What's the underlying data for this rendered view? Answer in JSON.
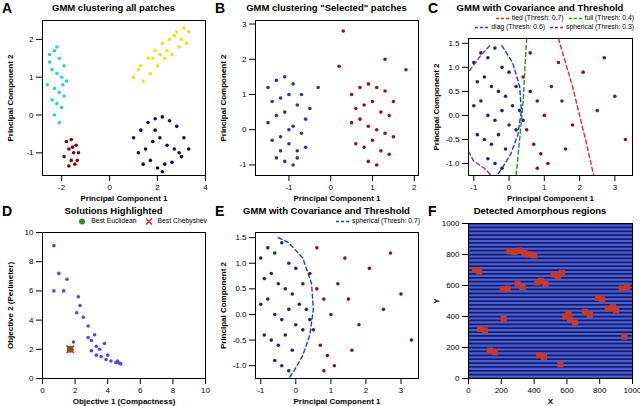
{
  "chart_data": [
    {
      "panel": "A",
      "type": "scatter",
      "title": "GMM clustering all patches",
      "x_label": "Principal Component 1",
      "y_label": "Principal Component 2",
      "xlim": [
        -2.8,
        4.0
      ],
      "ylim": [
        -1.6,
        2.5
      ],
      "xticks": [
        -2,
        0,
        2,
        4
      ],
      "yticks": [
        -1,
        0,
        1,
        2
      ],
      "series": [
        {
          "color": "#2ecfd4",
          "marker": "circle",
          "x": [
            -2.5,
            -2.3,
            -2.1,
            -1.9,
            -2.4,
            -2.2,
            -2.0,
            -1.8,
            -2.6,
            -2.3,
            -2.1,
            -1.9,
            -2.4,
            -2.2,
            -2.0,
            -2.5,
            -2.3,
            -2.1,
            -2.2,
            -1.95
          ],
          "y": [
            1.6,
            1.7,
            1.5,
            1.3,
            1.2,
            1.1,
            1.0,
            0.9,
            0.8,
            0.7,
            0.6,
            0.5,
            0.4,
            0.3,
            0.2,
            1.4,
            0.0,
            -0.2,
            1.8,
            0.8
          ]
        },
        {
          "color": "#7a0a0a",
          "marker": "circle",
          "x": [
            -1.8,
            -1.6,
            -1.4,
            -1.7,
            -1.5,
            -1.3,
            -1.9,
            -1.6,
            -1.45,
            -1.7,
            -1.55,
            -1.35
          ],
          "y": [
            -0.7,
            -0.65,
            -0.8,
            -0.9,
            -1.0,
            -1.0,
            -1.1,
            -1.2,
            -1.3,
            -1.35,
            -0.85,
            -1.2
          ]
        },
        {
          "color": "#0b0b5c",
          "marker": "circle",
          "x": [
            1.0,
            1.3,
            1.6,
            1.9,
            2.2,
            2.5,
            2.8,
            3.1,
            3.3,
            1.2,
            1.5,
            1.8,
            2.1,
            2.4,
            2.7,
            3.0,
            1.4,
            1.7,
            2.0,
            2.3,
            2.6,
            2.9,
            2.2,
            1.9
          ],
          "y": [
            -0.6,
            -0.4,
            -0.2,
            -0.1,
            -0.05,
            -0.15,
            -0.3,
            -0.6,
            -0.9,
            -1.0,
            -0.9,
            -0.7,
            -0.6,
            -0.8,
            -0.9,
            -1.1,
            -1.3,
            -1.2,
            -1.4,
            -1.3,
            -1.25,
            -1.0,
            -1.5,
            -0.4
          ]
        },
        {
          "color": "#f2df1c",
          "marker": "circle",
          "x": [
            1.0,
            1.3,
            1.6,
            1.9,
            2.2,
            2.5,
            2.8,
            3.1,
            3.3,
            1.4,
            1.7,
            2.0,
            2.3,
            2.6,
            2.9,
            3.2,
            1.2,
            1.8,
            2.4,
            3.0,
            2.1,
            2.7
          ],
          "y": [
            1.0,
            1.3,
            1.5,
            1.7,
            1.9,
            2.0,
            2.2,
            2.3,
            2.2,
            0.9,
            1.1,
            1.3,
            1.5,
            1.6,
            1.8,
            1.9,
            1.2,
            1.5,
            1.7,
            2.0,
            1.6,
            2.1
          ]
        }
      ]
    },
    {
      "panel": "B",
      "type": "scatter",
      "title": "GMM clustering \"Selected\" patches",
      "x_label": "Principal Component 1",
      "y_label": "Principal Component 2",
      "xlim": [
        -1.8,
        2.1
      ],
      "ylim": [
        -1.3,
        3.1
      ],
      "xticks": [
        -1,
        0,
        1,
        2
      ],
      "yticks": [
        -1,
        0,
        1,
        2,
        3
      ],
      "series": [
        {
          "color": "#2b3a8f",
          "marker": "circle",
          "x": [
            -1.5,
            -1.3,
            -1.1,
            -0.9,
            -0.7,
            -0.5,
            -1.4,
            -1.2,
            -1.0,
            -0.8,
            -0.6,
            -1.5,
            -1.3,
            -1.1,
            -0.9,
            -0.7,
            -1.4,
            -1.2,
            -1.0,
            -0.8,
            -0.6,
            -1.3,
            -1.1,
            -0.9,
            -1.0,
            -0.8,
            -1.2,
            -0.3
          ],
          "y": [
            1.2,
            1.4,
            1.5,
            1.3,
            1.0,
            0.6,
            0.8,
            0.9,
            1.0,
            0.7,
            0.3,
            0.2,
            0.4,
            0.5,
            0.1,
            -0.1,
            -0.3,
            -0.2,
            -0.4,
            -0.6,
            -0.5,
            -0.8,
            -0.9,
            -1.0,
            0.0,
            -0.8,
            -0.6,
            1.2
          ]
        },
        {
          "color": "#8b1a1a",
          "marker": "circle",
          "x": [
            0.5,
            0.7,
            0.9,
            1.1,
            1.3,
            1.5,
            0.6,
            0.8,
            1.0,
            1.2,
            1.4,
            0.5,
            0.7,
            0.9,
            1.1,
            1.3,
            1.5,
            0.6,
            0.8,
            1.0,
            1.2,
            1.4,
            0.9,
            1.1,
            1.8,
            1.3,
            0.3,
            0.2
          ],
          "y": [
            1.0,
            1.2,
            1.3,
            1.2,
            1.1,
            0.8,
            0.6,
            0.7,
            0.8,
            0.5,
            0.4,
            0.2,
            0.3,
            0.1,
            0.0,
            -0.1,
            -0.2,
            -0.4,
            -0.5,
            -0.3,
            -0.6,
            -0.7,
            -0.9,
            -1.0,
            1.7,
            2.0,
            2.8,
            1.8
          ]
        }
      ]
    },
    {
      "panel": "C",
      "type": "scatter",
      "title": "GMM with Covariance and Threshold",
      "x_label": "Principal Component 1",
      "y_label": "Principal Component 2",
      "xlim": [
        -1.15,
        3.5
      ],
      "ylim": [
        -1.25,
        1.6
      ],
      "xticks": [
        -1,
        0,
        1,
        2,
        3
      ],
      "yticks": [
        {
          "value": -1,
          "label": "-1.0"
        },
        {
          "value": -0.5,
          "label": "-0.5"
        },
        {
          "value": 0,
          "label": "0.0"
        },
        0.5,
        {
          "value": 1,
          "label": "1.0"
        },
        1.5
      ],
      "legend": "upper right",
      "series": [
        {
          "color": "#1f2a6e",
          "marker": "circle",
          "x": [
            -1.0,
            -0.8,
            -0.6,
            -0.4,
            -0.2,
            0.0,
            0.2,
            -0.9,
            -0.7,
            -0.5,
            -0.3,
            -0.1,
            0.1,
            0.3,
            -1.0,
            -0.8,
            -0.6,
            -0.4,
            -0.2,
            0.0,
            0.2,
            0.4,
            -0.9,
            -0.7,
            -0.5,
            -0.3,
            -0.1,
            -0.6,
            -0.4,
            -0.2
          ],
          "y": [
            1.1,
            1.3,
            1.2,
            1.4,
            1.0,
            0.9,
            0.6,
            0.7,
            0.8,
            0.6,
            0.5,
            0.4,
            0.2,
            0.1,
            0.2,
            0.3,
            0.0,
            -0.1,
            0.1,
            -0.2,
            -0.3,
            -0.1,
            -0.4,
            -0.5,
            -0.6,
            -0.4,
            -0.7,
            -0.9,
            -1.0,
            -1.1
          ]
        },
        {
          "color": "#7a1a1a",
          "marker": "circle",
          "x": [
            0.4,
            0.6,
            0.8,
            1.0,
            0.5,
            0.7,
            0.9,
            1.2,
            1.5,
            1.8,
            2.1,
            2.5,
            3.0,
            3.3,
            0.6,
            1.1,
            1.4,
            2.7,
            0.8,
            1.6
          ],
          "y": [
            0.8,
            0.5,
            0.3,
            0.0,
            -0.3,
            -0.6,
            -0.8,
            0.6,
            0.3,
            -0.2,
            0.9,
            0.1,
            0.4,
            -0.5,
            1.3,
            -1.0,
            1.1,
            1.2,
            -1.1,
            -0.7
          ]
        },
        {
          "name": "tied (Thresh: 0.7)",
          "type": "line",
          "line_style": "dashed",
          "color": "#e8282b",
          "x": [
            1.4,
            1.6,
            1.8,
            2.0,
            2.2,
            2.4
          ],
          "y": [
            1.6,
            1.1,
            0.6,
            0.0,
            -0.6,
            -1.25
          ]
        },
        {
          "name": "full (Thresh: 0.4)",
          "type": "line",
          "line_style": "dashed",
          "color": "#1a9a1a",
          "x": [
            0.5,
            0.45,
            0.4,
            0.3,
            0.2
          ],
          "y": [
            1.6,
            1.0,
            0.3,
            -0.5,
            -1.25
          ]
        },
        {
          "name": "diag (Thresh: 0.6)",
          "type": "line",
          "line_style": "dashed",
          "color": "#1f3ee0",
          "x": [
            -0.2,
            0.1,
            0.3,
            0.35,
            0.25,
            0.05,
            -0.2,
            -0.35
          ],
          "y": [
            1.45,
            1.1,
            0.6,
            0.1,
            -0.4,
            -0.8,
            -1.1,
            -1.25
          ]
        },
        {
          "name": "spherical (Thresh: 0.3)",
          "type": "line",
          "line_style": "dashed",
          "color": "#8b2a9a",
          "x": [
            -0.55,
            -0.8,
            -1.0,
            -1.15,
            null,
            -1.15,
            -1.0,
            -0.7,
            -0.5
          ],
          "y": [
            1.45,
            1.25,
            1.05,
            0.9,
            null,
            -0.75,
            -0.95,
            -1.1,
            -1.25
          ]
        }
      ]
    },
    {
      "panel": "D",
      "type": "scatter",
      "title": "Solutions Highlighted",
      "x_label": "Objective 1 (Compactness)",
      "y_label": "Objective 2 (Perimeter)",
      "xlim": [
        0,
        10
      ],
      "ylim": [
        0,
        10
      ],
      "xticks": [
        0,
        2,
        4,
        6,
        8,
        10
      ],
      "yticks": [
        0,
        2,
        4,
        6,
        8,
        10
      ],
      "legend": "upper right",
      "series": [
        {
          "color": "#4a4af0",
          "marker": "circle",
          "x": [
            0.7,
            1.0,
            1.3,
            0.7,
            1.5,
            2.2,
            2.3,
            2.5,
            1.9,
            2.8,
            3.0,
            3.3,
            2.8,
            3.3,
            3.6,
            3.9,
            4.2,
            4.5,
            4.7,
            4.8,
            3.0,
            3.5,
            4.0,
            4.6,
            2.1,
            3.2,
            3.8
          ],
          "y": [
            9.1,
            7.2,
            6.0,
            6.0,
            6.8,
            5.6,
            5.0,
            4.2,
            2.5,
            2.8,
            2.6,
            2.2,
            3.6,
            1.6,
            1.5,
            1.3,
            1.2,
            1.1,
            1.05,
            1.0,
            1.9,
            2.0,
            1.6,
            1.2,
            4.5,
            3.0,
            2.4
          ]
        },
        {
          "name": "Best Euclidean",
          "color": "#2e8b2e",
          "marker": "circle",
          "x": [
            1.7
          ],
          "y": [
            2.0
          ]
        },
        {
          "name": "Best Chebyshev",
          "color": "#e02020",
          "marker": "x",
          "x": [
            1.7
          ],
          "y": [
            2.0
          ]
        }
      ]
    },
    {
      "panel": "E",
      "type": "scatter",
      "title": "GMM with Covariance and Threshold",
      "x_label": "Principal Component 1",
      "y_label": "Principal Component 2",
      "xlim": [
        -1.15,
        3.5
      ],
      "ylim": [
        -1.25,
        1.6
      ],
      "xticks": [
        -1,
        0,
        1,
        2,
        3
      ],
      "yticks": [
        {
          "value": -1,
          "label": "-1.0"
        },
        {
          "value": -0.5,
          "label": "-0.5"
        },
        {
          "value": 0,
          "label": "0.0"
        },
        0.5,
        {
          "value": 1,
          "label": "1.0"
        },
        1.5
      ],
      "legend": "upper right",
      "series": [
        {
          "color": "#1f2a6e",
          "marker": "circle",
          "x": [
            -1.0,
            -0.8,
            -0.6,
            -0.4,
            -0.2,
            0.0,
            0.2,
            -0.9,
            -0.7,
            -0.5,
            -0.3,
            -0.1,
            0.1,
            0.3,
            -1.0,
            -0.8,
            -0.6,
            -0.4,
            -0.2,
            0.0,
            0.2,
            0.4,
            -0.9,
            -0.7,
            -0.5,
            -0.3,
            -0.1,
            -0.6,
            -0.4,
            -0.2
          ],
          "y": [
            1.1,
            1.3,
            1.2,
            1.4,
            1.0,
            0.9,
            0.6,
            0.7,
            0.8,
            0.6,
            0.5,
            0.4,
            0.2,
            0.1,
            0.2,
            0.3,
            0.0,
            -0.1,
            0.1,
            -0.2,
            -0.3,
            -0.1,
            -0.4,
            -0.5,
            -0.6,
            -0.4,
            -0.7,
            -0.9,
            -1.0,
            -1.1
          ]
        },
        {
          "color": "#7a1a1a",
          "marker": "circle",
          "x": [
            0.4,
            0.6,
            0.8,
            1.0,
            0.5,
            0.7,
            0.9,
            1.2,
            1.5,
            1.8,
            2.1,
            2.5,
            3.0,
            3.3,
            0.6,
            1.1,
            1.4,
            2.7,
            0.8,
            1.6
          ],
          "y": [
            0.8,
            0.5,
            0.3,
            0.0,
            -0.3,
            -0.6,
            -0.8,
            0.6,
            0.3,
            -0.2,
            0.9,
            0.1,
            0.4,
            -0.5,
            1.3,
            -1.0,
            1.1,
            1.2,
            -1.1,
            -0.7
          ]
        },
        {
          "name": "spherical (Thresh: 0.7)",
          "type": "line",
          "line_style": "dashed",
          "color": "#1f3ee0",
          "x": [
            -0.5,
            -0.2,
            0.2,
            0.45,
            0.5,
            0.4,
            0.2,
            -0.05,
            -0.2
          ],
          "y": [
            1.5,
            1.4,
            1.1,
            0.6,
            0.1,
            -0.4,
            -0.8,
            -1.1,
            -1.25
          ]
        }
      ]
    },
    {
      "panel": "F",
      "type": "scatter",
      "title": "Detected Amorphous regions",
      "x_label": "X",
      "y_label": "Y",
      "xlim": [
        0,
        1000
      ],
      "ylim": [
        0,
        1000
      ],
      "xticks": [
        0,
        200,
        400,
        600,
        800,
        1000
      ],
      "yticks": [
        0,
        200,
        400,
        600,
        800,
        1000
      ],
      "series": [
        {
          "type": "rule",
          "color": "#4a5fd6",
          "y": [
            12,
            37,
            62,
            87,
            112,
            137,
            162,
            187,
            212,
            237,
            262,
            287,
            312,
            337,
            362,
            387,
            412,
            437,
            462,
            487,
            512,
            537,
            562,
            587,
            612,
            637,
            662,
            687,
            712,
            737,
            762,
            787,
            812,
            837,
            862,
            887,
            912,
            937,
            962,
            987
          ]
        },
        {
          "color": "#c8382b",
          "marker": "square",
          "x": [
            250,
            280,
            310,
            340,
            370,
            400,
            420,
            440,
            470,
            520,
            545,
            570,
            590,
            620,
            650,
            610,
            790,
            815,
            850,
            880,
            900,
            210,
            240,
            70,
            100,
            40,
            65,
            130,
            160,
            430,
            460,
            215,
            950,
            935,
            965,
            710,
            740,
            300,
            330,
            560
          ],
          "y": [
            820,
            815,
            825,
            810,
            800,
            795,
            620,
            630,
            610,
            670,
            660,
            680,
            400,
            380,
            360,
            420,
            520,
            510,
            450,
            460,
            440,
            575,
            580,
            320,
            310,
            700,
            690,
            180,
            170,
            150,
            140,
            385,
            270,
            580,
            590,
            430,
            410,
            610,
            590,
            90
          ]
        }
      ]
    }
  ]
}
